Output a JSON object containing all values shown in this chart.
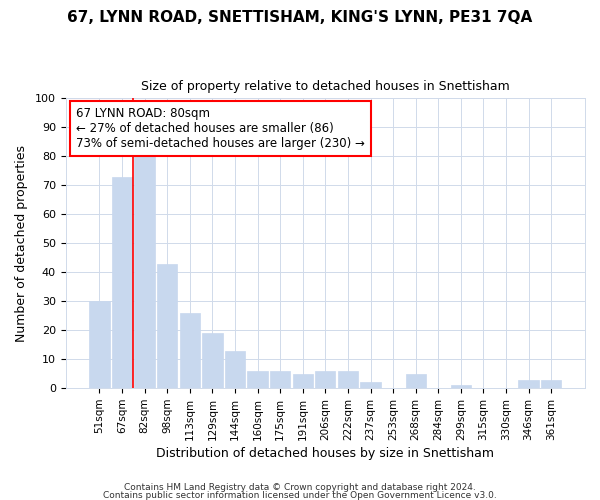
{
  "title": "67, LYNN ROAD, SNETTISHAM, KING'S LYNN, PE31 7QA",
  "subtitle": "Size of property relative to detached houses in Snettisham",
  "xlabel": "Distribution of detached houses by size in Snettisham",
  "ylabel": "Number of detached properties",
  "bar_color": "#c8d8ee",
  "bar_edgecolor": "#c8d8ee",
  "categories": [
    "51sqm",
    "67sqm",
    "82sqm",
    "98sqm",
    "113sqm",
    "129sqm",
    "144sqm",
    "160sqm",
    "175sqm",
    "191sqm",
    "206sqm",
    "222sqm",
    "237sqm",
    "253sqm",
    "268sqm",
    "284sqm",
    "299sqm",
    "315sqm",
    "330sqm",
    "346sqm",
    "361sqm"
  ],
  "values": [
    30,
    73,
    80,
    43,
    26,
    19,
    13,
    6,
    6,
    5,
    6,
    6,
    2,
    0,
    5,
    0,
    1,
    0,
    0,
    3,
    3
  ],
  "redline_index": 2,
  "annotation_line1": "67 LYNN ROAD: 80sqm",
  "annotation_line2": "← 27% of detached houses are smaller (86)",
  "annotation_line3": "73% of semi-detached houses are larger (230) →",
  "annotation_box_color": "white",
  "annotation_box_edgecolor": "red",
  "redline_color": "red",
  "ylim": [
    0,
    100
  ],
  "yticks": [
    0,
    10,
    20,
    30,
    40,
    50,
    60,
    70,
    80,
    90,
    100
  ],
  "footer1": "Contains HM Land Registry data © Crown copyright and database right 2024.",
  "footer2": "Contains public sector information licensed under the Open Government Licence v3.0.",
  "background_color": "#ffffff",
  "plot_bg_color": "#ffffff",
  "grid_color": "#d0daea",
  "title_fontsize": 11,
  "subtitle_fontsize": 9,
  "xlabel_fontsize": 9,
  "ylabel_fontsize": 9
}
